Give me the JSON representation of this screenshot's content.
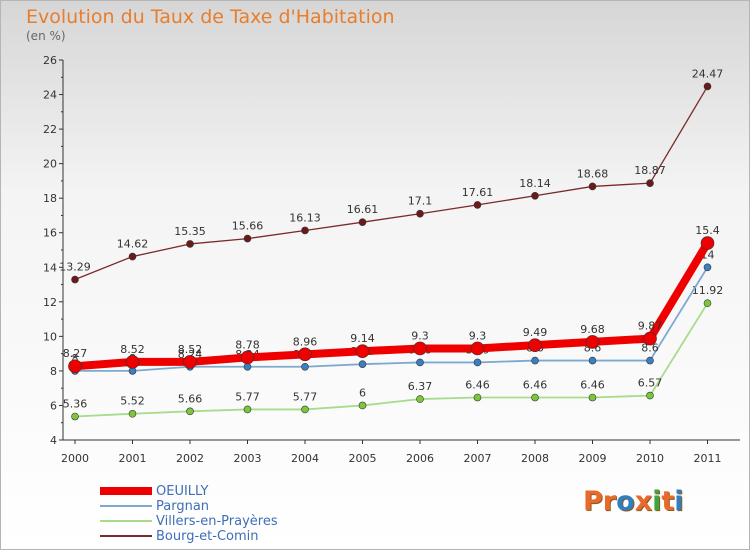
{
  "title": "Evolution du Taux de Taxe d'Habitation",
  "subtitle": "(en %)",
  "logo": {
    "text": "Proxiti",
    "letters": [
      "P",
      "r",
      "o",
      "x",
      "i",
      "t",
      "i"
    ],
    "colors": [
      "#e8692b",
      "#e8692b",
      "#2f7fc1",
      "#e8692b",
      "#3ea53e",
      "#e8692b",
      "#2f7fc1"
    ]
  },
  "chart_data": {
    "type": "line",
    "categories": [
      "2000",
      "2001",
      "2002",
      "2003",
      "2004",
      "2005",
      "2006",
      "2007",
      "2008",
      "2009",
      "2010",
      "2011"
    ],
    "ylim": [
      4,
      26
    ],
    "yticks": [
      "4",
      "6",
      "8",
      "10",
      "12",
      "14",
      "16",
      "18",
      "20",
      "22",
      "24",
      "26"
    ],
    "grid": false,
    "legend_position": "bottom-left",
    "series": [
      {
        "name": "Bourg-et-Comin",
        "color": "#7a2a2a",
        "marker": "#6b1a1a",
        "width": 1.3,
        "markerSize": 3.5,
        "values": [
          13.29,
          14.62,
          15.35,
          15.66,
          16.13,
          16.61,
          17.1,
          17.61,
          18.14,
          18.68,
          18.87,
          24.47
        ],
        "labels": [
          "13.29",
          "14.62",
          "15.35",
          "15.66",
          "16.13",
          "16.61",
          "17.1",
          "17.61",
          "18.14",
          "18.68",
          "18.87",
          "24.47"
        ]
      },
      {
        "name": "Villers-en-Prayères",
        "color": "#a6dc8c",
        "marker": "#7cc63c",
        "width": 1.8,
        "markerSize": 3.5,
        "values": [
          5.36,
          5.52,
          5.66,
          5.77,
          5.77,
          6,
          6.37,
          6.46,
          6.46,
          6.46,
          6.57,
          11.92
        ],
        "labels": [
          "5.36",
          "5.52",
          "5.66",
          "5.77",
          "5.77",
          "6",
          "6.37",
          "6.46",
          "6.46",
          "6.46",
          "6.57",
          "11.92"
        ]
      },
      {
        "name": "Pargnan",
        "color": "#7ea9cf",
        "marker": "#3a7fc4",
        "width": 1.8,
        "markerSize": 3.5,
        "values": [
          8,
          8,
          8.24,
          8.24,
          8.24,
          8.39,
          8.49,
          8.49,
          8.6,
          8.6,
          8.6,
          14
        ],
        "labels": [
          "8",
          "8",
          "8.24",
          "8.24",
          "8.24",
          "8.39",
          "8.49",
          "8.49",
          "8.6",
          "8.6",
          "8.6",
          "14"
        ]
      },
      {
        "name": "OEUILLY",
        "color": "#ee0000",
        "marker": "#ee0000",
        "width": 8,
        "markerSize": 6.5,
        "values": [
          8.27,
          8.52,
          8.52,
          8.78,
          8.96,
          9.14,
          9.3,
          9.3,
          9.49,
          9.68,
          9.87,
          15.4
        ],
        "labels": [
          "8.27",
          "8.52",
          "8.52",
          "8.78",
          "8.96",
          "9.14",
          "9.3",
          "9.3",
          "9.49",
          "9.68",
          "9.87",
          "15.4"
        ]
      }
    ],
    "legend": [
      {
        "name": "OEUILLY",
        "color": "#ee0000",
        "width": 8
      },
      {
        "name": "Pargnan",
        "color": "#7ea9cf",
        "width": 2
      },
      {
        "name": "Villers-en-Prayères",
        "color": "#a6dc8c",
        "width": 2
      },
      {
        "name": "Bourg-et-Comin",
        "color": "#7a2a2a",
        "width": 2
      }
    ]
  }
}
